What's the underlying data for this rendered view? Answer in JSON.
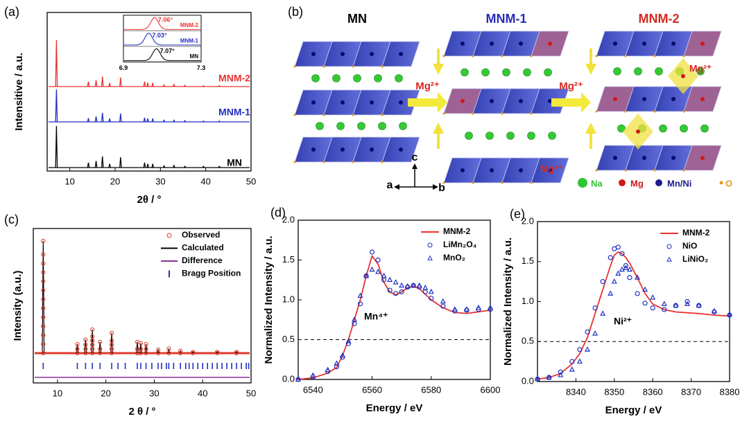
{
  "chart_data": [
    {
      "type": "peaks",
      "panel": "(a)",
      "xlabel": "2θ / °",
      "ylabel": "Intensitive / a.u.",
      "xlim": [
        5,
        50
      ],
      "xticks": [
        10,
        20,
        30,
        40,
        50
      ],
      "x": [
        7.05,
        14.1,
        15.8,
        17.2,
        18.8,
        21.2,
        26.5,
        27.2,
        28.3,
        30.8,
        33,
        35.4,
        39.5,
        43
      ],
      "series": [
        {
          "name": "MNM-2",
          "color": "#e8322f",
          "values": [
            112,
            12,
            15,
            24,
            9,
            22,
            12,
            9,
            9,
            4,
            5,
            3,
            2,
            2
          ]
        },
        {
          "name": "MNM-1",
          "color": "#1f2fbf",
          "values": [
            78,
            9,
            13,
            22,
            8,
            20,
            10,
            8,
            8,
            4,
            4,
            3,
            2,
            2
          ]
        },
        {
          "name": "MN",
          "color": "#000000",
          "values": [
            100,
            12,
            16,
            27,
            9,
            25,
            12,
            9,
            9,
            4,
            5,
            3,
            3,
            3
          ]
        }
      ],
      "inset": {
        "type": "line",
        "xlim": [
          6.9,
          7.3
        ],
        "xticks": [
          6.9,
          7.3
        ],
        "series": [
          {
            "name": "MNM-2",
            "color": "#e8322f",
            "values": [
              7.06
            ],
            "value_labels": [
              "7.06°"
            ]
          },
          {
            "name": "MNM-1",
            "color": "#1f2fbf",
            "values": [
              7.03
            ],
            "value_labels": [
              "7.03°"
            ]
          },
          {
            "name": "MN",
            "color": "#000000",
            "values": [
              7.07
            ],
            "value_labels": [
              "7.07°"
            ]
          }
        ]
      }
    },
    {
      "type": "refinement",
      "panel": "(c)",
      "xlabel": "2 θ / °",
      "ylabel": "Intensity (a.u.)",
      "xlim": [
        5,
        50
      ],
      "xticks": [
        10,
        20,
        30,
        40,
        50
      ],
      "x": [
        7.05,
        14.1,
        15.8,
        17.2,
        18.8,
        21.2,
        26.5,
        27.2,
        28.3,
        30.8,
        33,
        35.4,
        38,
        43,
        47
      ],
      "series": [
        {
          "name": "Observed",
          "color": "#e03a2a",
          "values": [
            100,
            8,
            12,
            21,
            10,
            18,
            10,
            9,
            8,
            3,
            4,
            2,
            1,
            1,
            1
          ]
        },
        {
          "name": "Calculated",
          "color": "#000000",
          "values": [
            100,
            8,
            12,
            21,
            10,
            18,
            10,
            9,
            8,
            3,
            4,
            2,
            1,
            1,
            1
          ]
        },
        {
          "name": "Difference",
          "color": "#8a2a9a"
        },
        {
          "name": "Bragg Position",
          "color": "#1f2fbf",
          "positions": [
            7.05,
            14.1,
            15.8,
            17.2,
            18.8,
            21.2,
            22.5,
            24,
            26.5,
            27.2,
            28.3,
            29.5,
            30.8,
            31.5,
            32.5,
            33,
            34,
            35.4,
            36.5,
            37.2,
            38,
            39,
            40,
            41,
            42,
            43,
            44,
            45,
            46,
            47,
            48,
            49,
            49.5
          ]
        }
      ]
    },
    {
      "type": "line",
      "panel": "(d)",
      "xlabel": "Energy / eV",
      "ylabel": "Normalized Intensity / a.u.",
      "xlim": [
        6535,
        6600
      ],
      "xticks": [
        6540,
        6560,
        6580,
        6600
      ],
      "ylim": [
        0,
        2
      ],
      "yticks": [
        {
          "value": 0,
          "label": "0.0"
        },
        {
          "value": 0.5,
          "label": "0.5"
        },
        {
          "value": 1,
          "label": "1.0"
        },
        {
          "value": 1.5,
          "label": "1.5"
        },
        {
          "value": 2,
          "label": "2.0"
        }
      ],
      "reference": 0.5,
      "annotation": "Mn⁴⁺",
      "legend": "upper right",
      "x": [
        6535,
        6540,
        6545,
        6548,
        6550,
        6552,
        6554,
        6556,
        6558,
        6560,
        6562,
        6564,
        6566,
        6568,
        6570,
        6572,
        6574,
        6576,
        6578,
        6580,
        6584,
        6588,
        6592,
        6596,
        6600
      ],
      "series": [
        {
          "name": "MNM-2",
          "color": "#e8322f",
          "marker": "line",
          "values": [
            0,
            0.02,
            0.08,
            0.15,
            0.3,
            0.5,
            0.75,
            1.0,
            1.3,
            1.55,
            1.45,
            1.22,
            1.1,
            1.06,
            1.1,
            1.15,
            1.17,
            1.14,
            1.07,
            1.0,
            0.9,
            0.84,
            0.83,
            0.85,
            0.87
          ]
        },
        {
          "name": "LiMn₂O₄",
          "color": "#1f2fbf",
          "marker": "circle",
          "values": [
            0,
            0.03,
            0.1,
            0.16,
            0.28,
            0.45,
            0.7,
            0.95,
            1.3,
            1.6,
            1.5,
            1.25,
            1.12,
            1.08,
            1.1,
            1.16,
            1.18,
            1.16,
            1.1,
            1.02,
            0.92,
            0.86,
            0.87,
            0.88,
            0.88
          ]
        },
        {
          "name": "MnO₂",
          "color": "#1f2fbf",
          "marker": "triangle",
          "values": [
            0,
            0.05,
            0.12,
            0.2,
            0.3,
            0.48,
            0.75,
            1.05,
            1.3,
            1.38,
            1.35,
            1.3,
            1.25,
            1.22,
            1.18,
            1.17,
            1.18,
            1.18,
            1.15,
            1.1,
            0.98,
            0.88,
            0.88,
            0.9,
            0.9
          ]
        }
      ]
    },
    {
      "type": "line",
      "panel": "(e)",
      "xlabel": "Energy / eV",
      "ylabel": "Normalized Intensity / a.u.",
      "xlim": [
        8330,
        8380
      ],
      "xticks": [
        8340,
        8350,
        8360,
        8370,
        8380
      ],
      "ylim": [
        0,
        2
      ],
      "yticks": [
        {
          "value": 0,
          "label": "0.0"
        },
        {
          "value": 0.5,
          "label": "0.5"
        },
        {
          "value": 1,
          "label": "1.0"
        },
        {
          "value": 1.5,
          "label": "1.5"
        },
        {
          "value": 2,
          "label": "2.0"
        }
      ],
      "reference": 0.5,
      "annotation": "Ni²⁺",
      "legend": "upper right",
      "x": [
        8330,
        8333,
        8336,
        8339,
        8341,
        8343,
        8345,
        8347,
        8349,
        8350,
        8351,
        8352,
        8353,
        8354,
        8356,
        8358,
        8360,
        8363,
        8366,
        8369,
        8372,
        8376,
        8380
      ],
      "series": [
        {
          "name": "MNM-2",
          "color": "#e8322f",
          "marker": "line",
          "values": [
            0.03,
            0.05,
            0.1,
            0.22,
            0.35,
            0.55,
            0.85,
            1.15,
            1.45,
            1.58,
            1.62,
            1.6,
            1.55,
            1.48,
            1.3,
            1.1,
            0.97,
            0.9,
            0.87,
            0.86,
            0.85,
            0.83,
            0.82
          ]
        },
        {
          "name": "NiO",
          "color": "#1f2fbf",
          "marker": "circle",
          "values": [
            0.03,
            0.05,
            0.12,
            0.25,
            0.4,
            0.62,
            0.92,
            1.25,
            1.55,
            1.66,
            1.68,
            1.6,
            1.45,
            1.3,
            1.1,
            0.98,
            0.92,
            0.9,
            0.95,
            1.0,
            0.95,
            0.87,
            0.83
          ]
        },
        {
          "name": "LiNiO₂",
          "color": "#1f2fbf",
          "marker": "triangle",
          "values": [
            0.03,
            0.05,
            0.08,
            0.15,
            0.25,
            0.4,
            0.6,
            0.85,
            1.1,
            1.25,
            1.35,
            1.4,
            1.42,
            1.4,
            1.3,
            1.15,
            1.05,
            0.97,
            0.95,
            0.97,
            0.95,
            0.88,
            0.84
          ]
        }
      ]
    }
  ],
  "diagram": {
    "panel": "(b)",
    "structures": [
      {
        "label": "MN",
        "color": "#000000"
      },
      {
        "label": "MNM-1",
        "color": "#2a2ab8"
      },
      {
        "label": "MNM-2",
        "color": "#d42a20"
      }
    ],
    "arrows": [
      "Mg²⁺",
      "Mg²⁺"
    ],
    "ion_labels": [
      "Mg²⁺",
      "Mg²⁺"
    ],
    "axes": [
      "a",
      "b",
      "c"
    ],
    "legend": [
      {
        "name": "Na",
        "color": "#2ec52e"
      },
      {
        "name": "Mg",
        "color": "#d01818"
      },
      {
        "name": "Mn/Ni",
        "color": "#1a1a8a"
      },
      {
        "name": "O",
        "color": "#e69a20"
      }
    ]
  }
}
